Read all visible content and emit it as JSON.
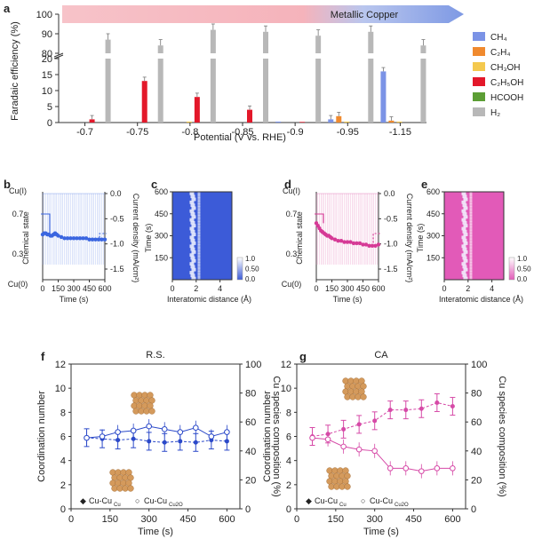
{
  "panel_letters": [
    "a",
    "b",
    "c",
    "d",
    "e",
    "f",
    "g"
  ],
  "panel_a": {
    "ylabel": "Faradaic efficiency (%)",
    "xlabel": "Potential (V vs. RHE)",
    "banner": "Metallic Copper",
    "legend": [
      {
        "label": "CH₄",
        "color": "#7b93e6"
      },
      {
        "label": "C₂H₄",
        "color": "#f08a2e"
      },
      {
        "label": "CH₃OH",
        "color": "#f4c94e"
      },
      {
        "label": "C₂H₅OH",
        "color": "#e3182a"
      },
      {
        "label": "HCOOH",
        "color": "#5c9e35"
      },
      {
        "label": "H₂",
        "color": "#b8b8b8"
      }
    ]
  },
  "panel_b": {
    "left_label": "Chemical state",
    "right_label": "Current density (mA/cm²)",
    "top_state": "Cu(I)",
    "bottom_state": "Cu(0)",
    "xlabel": "Time (s)"
  },
  "panel_c": {
    "ylabel": "Time (s)",
    "xlabel": "Interatomic distance (Å)",
    "cbar_ticks": [
      "1.0",
      "0.50",
      "0.0"
    ]
  },
  "panel_d": {
    "left_label": "Chemical state",
    "right_label": "Current density (mA/cm²)",
    "top_state": "Cu(I)",
    "bottom_state": "Cu(0)",
    "xlabel": "Time (s)"
  },
  "panel_e": {
    "ylabel": "Time (s)",
    "xlabel": "Interatomic distance (Å)",
    "cbar_ticks": [
      "1.0",
      "0.50",
      "0.0"
    ]
  },
  "panel_f": {
    "title": "R.S.",
    "ylabel": "Coordination number",
    "ylabel_right": "Cu species composition (%)",
    "xlabel": "Time (s)",
    "legend": [
      "Cu-Cu",
      "Cu-Cu"
    ],
    "legend_sub": [
      "Cu",
      "Cu2O"
    ]
  },
  "panel_g": {
    "title": "CA",
    "ylabel": "Coordination number",
    "ylabel_right": "Cu species composition (%)",
    "xlabel": "Time (s)",
    "legend": [
      "Cu-Cu",
      "Cu-Cu"
    ],
    "legend_sub": [
      "Cu",
      "Cu2O"
    ]
  },
  "chart_data": [
    {
      "id": "a",
      "type": "bar",
      "categories": [
        "-0.7",
        "-0.75",
        "-0.8",
        "-0.85",
        "-0.9",
        "-0.95",
        "-1.15"
      ],
      "series": [
        {
          "name": "CH4",
          "values": [
            0,
            0,
            0,
            0,
            0.3,
            1,
            16
          ]
        },
        {
          "name": "C2H4",
          "values": [
            0,
            0,
            0,
            0,
            0,
            2,
            0.6
          ]
        },
        {
          "name": "CH3OH",
          "values": [
            0,
            0,
            0.3,
            0,
            0,
            0.3,
            0.3
          ]
        },
        {
          "name": "C2H5OH",
          "values": [
            1,
            13,
            8,
            4,
            0.2,
            0,
            0
          ]
        },
        {
          "name": "HCOOH",
          "values": [
            0,
            0,
            0,
            0,
            0,
            0,
            0
          ]
        },
        {
          "name": "H2",
          "values": [
            87,
            84,
            92,
            91,
            89,
            91,
            84
          ]
        }
      ],
      "y_ticks": [
        0,
        5,
        10,
        15,
        20,
        80,
        90,
        100
      ],
      "ylim": [
        0,
        100
      ],
      "axis_break": [
        20,
        80
      ]
    },
    {
      "id": "b",
      "type": "line",
      "x_ticks": [
        0,
        150,
        300,
        450,
        600
      ],
      "y_left_ticks": [
        "Cu(I)",
        "0.7",
        "0.3",
        "Cu(0)"
      ],
      "y_right_ticks": [
        "0.0",
        "-0.5",
        "-1.0",
        "-1.5"
      ],
      "chemical_state": {
        "x": [
          0,
          15,
          30,
          45,
          60,
          75,
          90,
          105,
          120,
          135,
          150,
          180,
          210,
          240,
          270,
          300,
          330,
          360,
          390,
          420,
          450,
          480,
          510,
          540,
          570,
          600
        ],
        "y": [
          0.46,
          0.47,
          0.47,
          0.46,
          0.46,
          0.45,
          0.45,
          0.46,
          0.47,
          0.46,
          0.45,
          0.44,
          0.43,
          0.43,
          0.43,
          0.43,
          0.43,
          0.43,
          0.43,
          0.43,
          0.42,
          0.42,
          0.42,
          0.42,
          0.42,
          0.42
        ]
      }
    },
    {
      "id": "c",
      "type": "heatmap",
      "y_ticks": [
        150,
        300,
        450,
        600
      ],
      "x_ticks": [
        0,
        2,
        4
      ],
      "peak_x": 1.9
    },
    {
      "id": "d",
      "type": "line",
      "x_ticks": [
        0,
        150,
        300,
        450,
        600
      ],
      "y_left_ticks": [
        "Cu(I)",
        "0.7",
        "0.3",
        "Cu(0)"
      ],
      "y_right_ticks": [
        "0.0",
        "-0.5",
        "-1.0",
        "-1.5"
      ],
      "chemical_state": {
        "x": [
          0,
          15,
          30,
          45,
          60,
          75,
          90,
          105,
          120,
          135,
          150,
          180,
          210,
          240,
          270,
          300,
          330,
          360,
          390,
          420,
          450,
          480,
          510,
          540,
          570,
          600
        ],
        "y": [
          0.55,
          0.53,
          0.51,
          0.49,
          0.48,
          0.47,
          0.46,
          0.45,
          0.45,
          0.44,
          0.43,
          0.42,
          0.41,
          0.41,
          0.4,
          0.4,
          0.4,
          0.39,
          0.39,
          0.39,
          0.38,
          0.38,
          0.37,
          0.37,
          0.37,
          0.38
        ]
      }
    },
    {
      "id": "e",
      "type": "heatmap",
      "y_ticks": [
        150,
        300,
        450,
        600
      ],
      "x_ticks": [
        0,
        2,
        4
      ],
      "peak_x": 1.9
    },
    {
      "id": "f",
      "type": "line",
      "ylim": [
        0,
        12
      ],
      "y2lim": [
        0,
        100
      ],
      "x_ticks": [
        0,
        150,
        300,
        450,
        600
      ],
      "series": [
        {
          "name": "Cu-Cu_Cu",
          "x": [
            60,
            120,
            180,
            240,
            300,
            360,
            420,
            480,
            540,
            600
          ],
          "y": [
            5.9,
            5.8,
            5.7,
            5.8,
            5.6,
            5.5,
            5.6,
            5.5,
            5.7,
            5.6
          ]
        },
        {
          "name": "Cu-Cu_Cu2O",
          "x": [
            60,
            120,
            180,
            240,
            300,
            360,
            420,
            480,
            540,
            600
          ],
          "y2": [
            49,
            50,
            53,
            54,
            57,
            55,
            53,
            56,
            50,
            53
          ]
        }
      ]
    },
    {
      "id": "g",
      "type": "line",
      "ylim": [
        0,
        12
      ],
      "y2lim": [
        0,
        100
      ],
      "x_ticks": [
        0,
        150,
        300,
        450,
        600
      ],
      "series": [
        {
          "name": "Cu-Cu_Cu",
          "x": [
            60,
            120,
            180,
            240,
            300,
            360,
            420,
            480,
            540,
            600
          ],
          "y": [
            6.0,
            6.2,
            6.6,
            7.0,
            7.3,
            8.2,
            8.2,
            8.3,
            8.8,
            8.5
          ]
        },
        {
          "name": "Cu-Cu_Cu2O",
          "x": [
            60,
            120,
            180,
            240,
            300,
            360,
            420,
            480,
            540,
            600
          ],
          "y2": [
            49,
            48,
            43,
            41,
            40,
            28,
            28,
            26,
            28,
            28
          ]
        }
      ]
    }
  ]
}
